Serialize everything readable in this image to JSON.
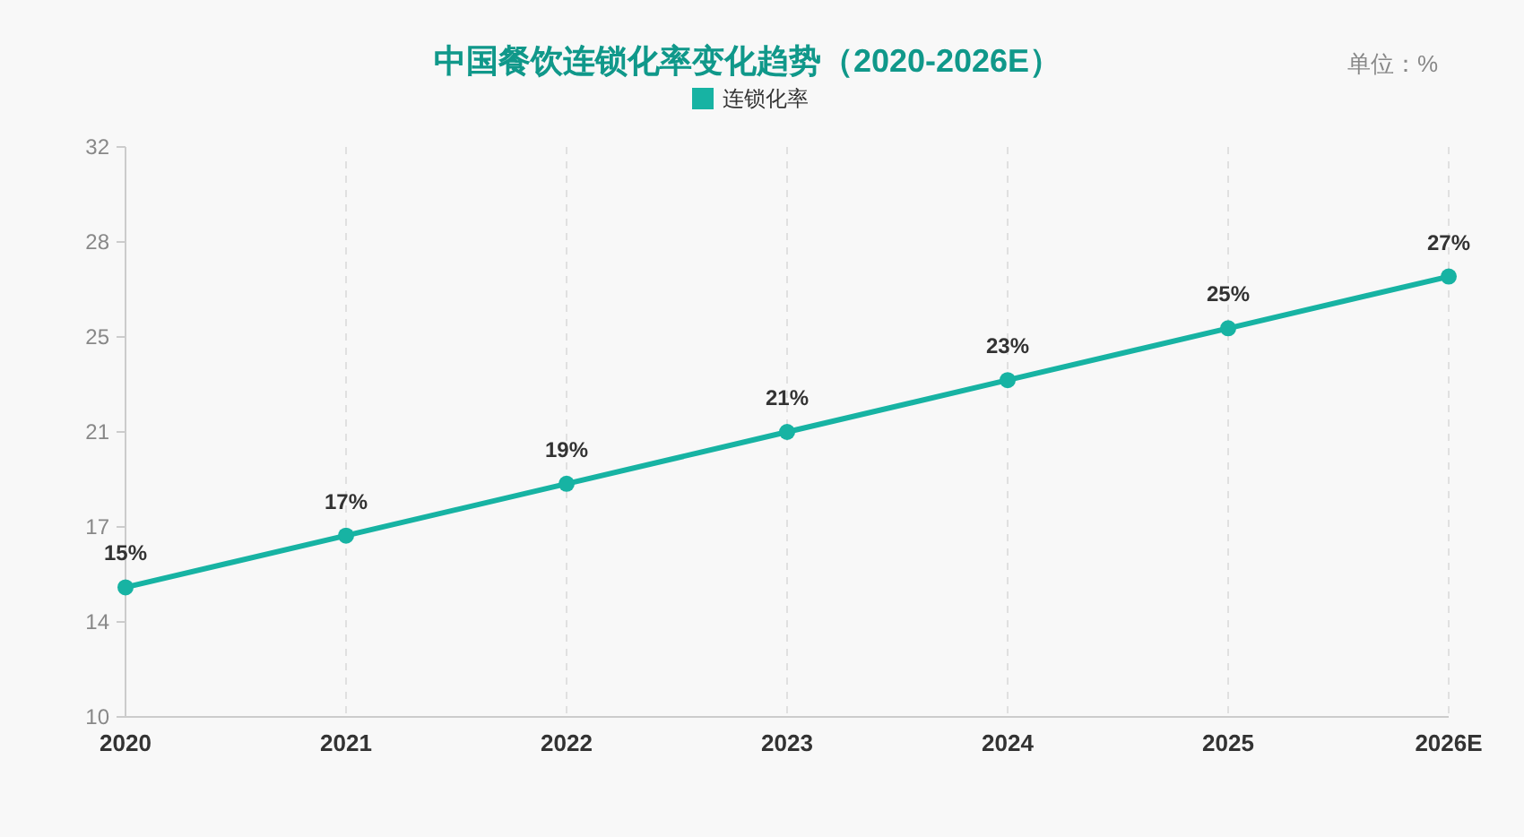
{
  "chart_data": {
    "type": "line",
    "title": "中国餐饮连锁化率变化趋势（2020-2026E）",
    "annotations": [
      "单位：%"
    ],
    "categories": [
      "2020",
      "2021",
      "2022",
      "2023",
      "2024",
      "2025",
      "2026E"
    ],
    "series": [
      {
        "name": "连锁化率",
        "color": "#17b3a3",
        "values": [
          15,
          17,
          19,
          21,
          23,
          25,
          27
        ]
      }
    ],
    "value_labels": [
      "15%",
      "17%",
      "19%",
      "21%",
      "23%",
      "25%",
      "27%"
    ],
    "ylim": [
      10,
      32
    ],
    "yticks": [
      10,
      {
        "value": 13.667,
        "label": "14"
      },
      {
        "value": 17.333,
        "label": "17"
      },
      21,
      {
        "value": 24.667,
        "label": "25"
      },
      {
        "value": 28.333,
        "label": "28"
      },
      32
    ],
    "grid": "x",
    "legend": "top",
    "marker": "circle",
    "line_style": "solid"
  }
}
